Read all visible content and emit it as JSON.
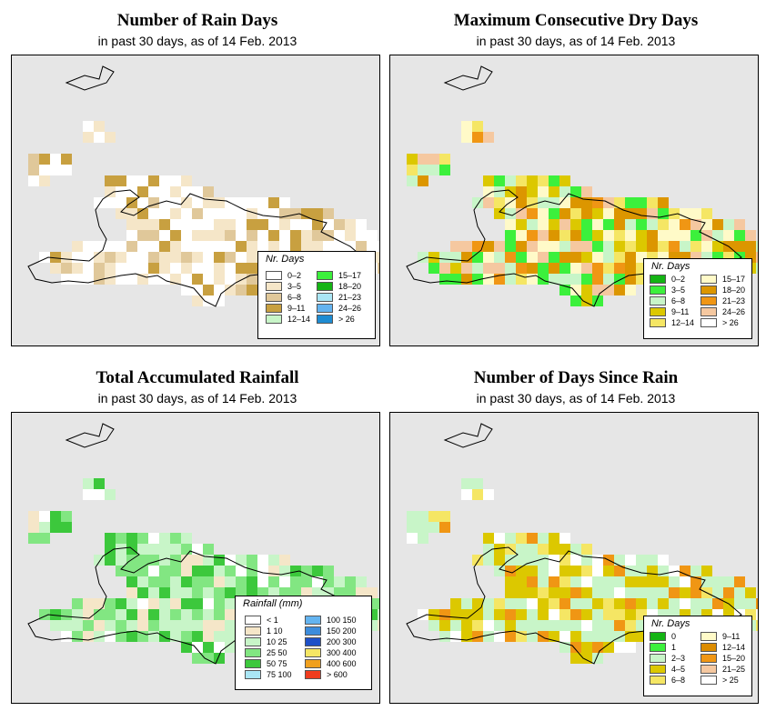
{
  "panels": [
    {
      "id": "rain_days",
      "title": "Number of Rain Days",
      "subtitle": "in past 30 days, as of  14 Feb. 2013",
      "legend": {
        "title": "Nr. Days",
        "items": [
          {
            "label": "0–2",
            "color": "#ffffff"
          },
          {
            "label": "3–5",
            "color": "#f5e6c8"
          },
          {
            "label": "6–8",
            "color": "#e0c89a"
          },
          {
            "label": "9–11",
            "color": "#c8a040"
          },
          {
            "label": "12–14",
            "color": "#c8f5c8"
          },
          {
            "label": "15–17",
            "color": "#3cf03c"
          },
          {
            "label": "18–20",
            "color": "#14b414"
          },
          {
            "label": "21–23",
            "color": "#aae6f5"
          },
          {
            "label": "24–26",
            "color": "#64b4f0"
          },
          {
            "label": "> 26",
            "color": "#1e8cd2"
          }
        ]
      }
    },
    {
      "id": "max_dry",
      "title": "Maximum Consecutive Dry Days",
      "subtitle": "in past 30 days, as of  14 Feb. 2013",
      "legend": {
        "title": "Nr. Days",
        "items": [
          {
            "label": "0–2",
            "color": "#14b414"
          },
          {
            "label": "3–5",
            "color": "#3cf03c"
          },
          {
            "label": "6–8",
            "color": "#c8f5c8"
          },
          {
            "label": "9–11",
            "color": "#dcc800"
          },
          {
            "label": "12–14",
            "color": "#f5e664"
          },
          {
            "label": "15–17",
            "color": "#fffac8"
          },
          {
            "label": "18–20",
            "color": "#dc9600"
          },
          {
            "label": "21–23",
            "color": "#f09614"
          },
          {
            "label": "24–26",
            "color": "#f5c8a0"
          },
          {
            "label": "> 26",
            "color": "#ffffff"
          }
        ]
      }
    },
    {
      "id": "total_rain",
      "title": "Total Accumulated Rainfall",
      "subtitle": "in past 30 days, as of  14 Feb. 2013",
      "legend": {
        "title": "Rainfall (mm)",
        "items": [
          {
            "label": "< 1",
            "color": "#ffffff"
          },
          {
            "label": "1     10",
            "color": "#f5e6c8"
          },
          {
            "label": "10     25",
            "color": "#c8f5c8"
          },
          {
            "label": "25     50",
            "color": "#82e682"
          },
          {
            "label": "50     75",
            "color": "#3cc83c"
          },
          {
            "label": "75   100",
            "color": "#aae6f5"
          },
          {
            "label": "100   150",
            "color": "#64b4f0"
          },
          {
            "label": "150   200",
            "color": "#3c8cdc"
          },
          {
            "label": "200   300",
            "color": "#1e50c8"
          },
          {
            "label": "300   400",
            "color": "#f5e664"
          },
          {
            "label": "400   600",
            "color": "#f0a01e"
          },
          {
            "label": "> 600",
            "color": "#f03c1e"
          }
        ]
      }
    },
    {
      "id": "days_since",
      "title": "Number of Days Since Rain",
      "subtitle": "in past 30 days, as of  14 Feb. 2013",
      "legend": {
        "title": "Nr. Days",
        "items": [
          {
            "label": "0",
            "color": "#14b414"
          },
          {
            "label": "1",
            "color": "#3cf03c"
          },
          {
            "label": "2–3",
            "color": "#c8f5c8"
          },
          {
            "label": "4–5",
            "color": "#dcc800"
          },
          {
            "label": "6–8",
            "color": "#f5e664"
          },
          {
            "label": "9–11",
            "color": "#fffac8"
          },
          {
            "label": "12–14",
            "color": "#dc8c00"
          },
          {
            "label": "15–20",
            "color": "#f09614"
          },
          {
            "label": "21–25",
            "color": "#f5c8a0"
          },
          {
            "label": "> 25",
            "color": "#ffffff"
          }
        ]
      }
    }
  ]
}
